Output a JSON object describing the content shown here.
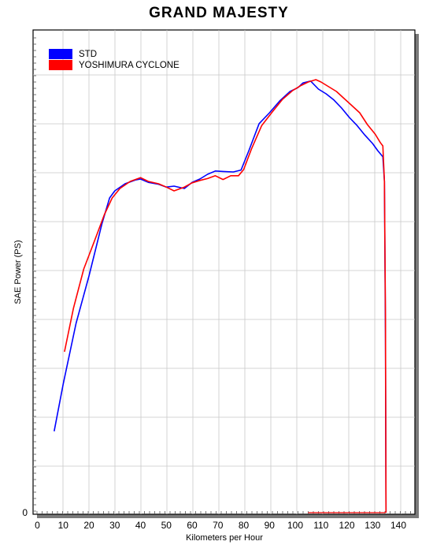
{
  "chart_data": {
    "type": "line",
    "title": "GRAND MAJESTY",
    "xlabel": "Kilometers per Hour",
    "ylabel": "SAE Power (PS)",
    "xlim": [
      0,
      140
    ],
    "x_ticks": [
      "0",
      "10",
      "20",
      "30",
      "40",
      "50",
      "60",
      "70",
      "80",
      "90",
      "100",
      "110",
      "120",
      "130",
      "140"
    ],
    "y_tick_labels": [
      "0"
    ],
    "grid": true,
    "legend": "top-left",
    "series": [
      {
        "name": "STD",
        "color": "#0000ff",
        "points": [
          [
            6.5,
            0.172
          ],
          [
            10,
            0.272
          ],
          [
            15,
            0.4
          ],
          [
            20,
            0.5
          ],
          [
            25,
            0.61
          ],
          [
            28,
            0.665
          ],
          [
            30,
            0.68
          ],
          [
            34,
            0.695
          ],
          [
            38,
            0.703
          ],
          [
            40,
            0.705
          ],
          [
            43,
            0.698
          ],
          [
            47,
            0.694
          ],
          [
            50,
            0.688
          ],
          [
            53,
            0.69
          ],
          [
            57,
            0.685
          ],
          [
            60,
            0.698
          ],
          [
            63,
            0.705
          ],
          [
            66,
            0.715
          ],
          [
            69,
            0.722
          ],
          [
            72,
            0.721
          ],
          [
            76,
            0.72
          ],
          [
            79,
            0.724
          ],
          [
            82,
            0.765
          ],
          [
            86,
            0.822
          ],
          [
            90,
            0.845
          ],
          [
            94,
            0.87
          ],
          [
            98,
            0.89
          ],
          [
            101,
            0.898
          ],
          [
            103,
            0.908
          ],
          [
            106,
            0.912
          ],
          [
            109,
            0.895
          ],
          [
            112,
            0.885
          ],
          [
            115,
            0.872
          ],
          [
            118,
            0.855
          ],
          [
            121,
            0.835
          ],
          [
            124,
            0.818
          ],
          [
            127,
            0.798
          ],
          [
            130,
            0.78
          ],
          [
            132,
            0.765
          ],
          [
            134,
            0.752
          ],
          [
            134.6,
            0.7
          ],
          [
            135,
            0.38
          ],
          [
            135.2,
            0.0
          ]
        ]
      },
      {
        "name": "YOSHIMURA CYCLONE",
        "color": "#ff0000",
        "points": [
          [
            10.5,
            0.34
          ],
          [
            14,
            0.432
          ],
          [
            18,
            0.515
          ],
          [
            22,
            0.572
          ],
          [
            26,
            0.63
          ],
          [
            29,
            0.665
          ],
          [
            32,
            0.685
          ],
          [
            36,
            0.7
          ],
          [
            40,
            0.708
          ],
          [
            43,
            0.7
          ],
          [
            47,
            0.695
          ],
          [
            50,
            0.688
          ],
          [
            53,
            0.68
          ],
          [
            57,
            0.688
          ],
          [
            60,
            0.697
          ],
          [
            63,
            0.702
          ],
          [
            66,
            0.706
          ],
          [
            69,
            0.712
          ],
          [
            72,
            0.704
          ],
          [
            75,
            0.712
          ],
          [
            78,
            0.712
          ],
          [
            80,
            0.725
          ],
          [
            83,
            0.768
          ],
          [
            87,
            0.818
          ],
          [
            91,
            0.846
          ],
          [
            95,
            0.873
          ],
          [
            99,
            0.892
          ],
          [
            102,
            0.902
          ],
          [
            105,
            0.91
          ],
          [
            108,
            0.915
          ],
          [
            110,
            0.91
          ],
          [
            113,
            0.9
          ],
          [
            116,
            0.89
          ],
          [
            119,
            0.875
          ],
          [
            122,
            0.86
          ],
          [
            125,
            0.845
          ],
          [
            128,
            0.82
          ],
          [
            131,
            0.8
          ],
          [
            133,
            0.782
          ],
          [
            134,
            0.775
          ],
          [
            134.6,
            0.7
          ],
          [
            135,
            0.42
          ],
          [
            135.2,
            0.0
          ]
        ]
      }
    ]
  }
}
